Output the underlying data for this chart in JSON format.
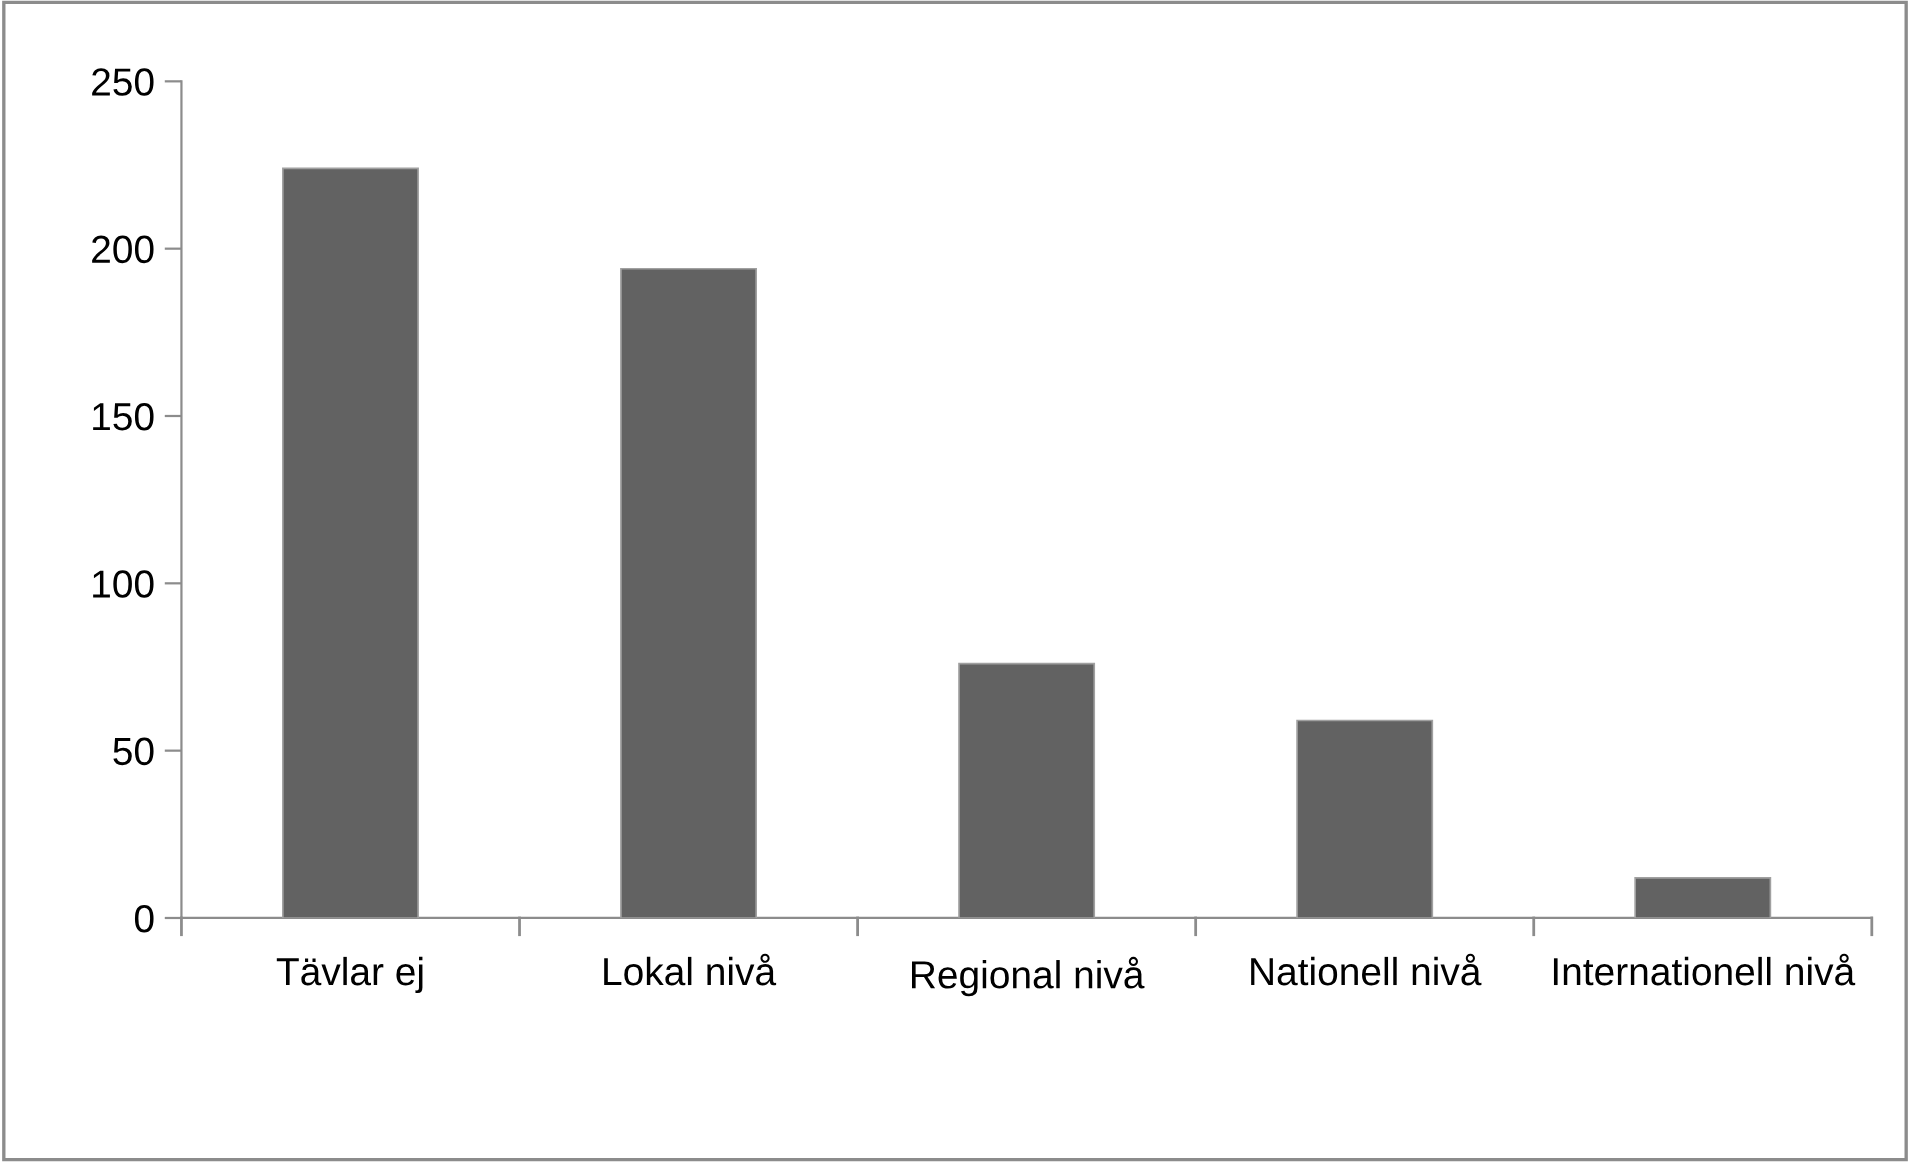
{
  "chart_data": {
    "type": "bar",
    "categories": [
      "Tävlar ej",
      "Lokal nivå",
      "Regional nivå",
      "Nationell nivå",
      "Internationell nivå"
    ],
    "values": [
      224,
      194,
      76,
      59,
      12
    ],
    "color": "#626262",
    "ylim": [
      0,
      250
    ],
    "yticks": [
      0,
      50,
      100,
      150,
      200,
      250
    ],
    "grid": false
  }
}
